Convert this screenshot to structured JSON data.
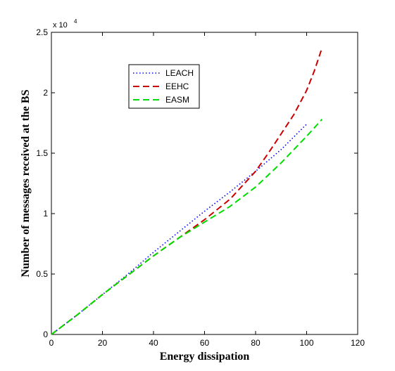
{
  "chart_data": {
    "type": "line",
    "title": "",
    "xlabel": "Energy dissipation",
    "ylabel": "Number of messages received at the BS",
    "xlim": [
      0,
      120
    ],
    "ylim": [
      0,
      25000
    ],
    "x_ticks": [
      0,
      20,
      40,
      60,
      80,
      100,
      120
    ],
    "y_ticks": [
      0,
      5000,
      10000,
      15000,
      20000,
      25000
    ],
    "x_tick_labels": [
      "0",
      "20",
      "40",
      "60",
      "80",
      "100",
      "120"
    ],
    "y_tick_labels": [
      "0",
      "0.5",
      "1",
      "1.5",
      "2",
      "2.5"
    ],
    "y_exponent_label": {
      "base": "x 10",
      "power": "4"
    },
    "grid": false,
    "legend_position": "top-center",
    "series": [
      {
        "name": "LEACH",
        "color": "#0000ff",
        "style": "dotted",
        "x": [
          0,
          10,
          20,
          30,
          40,
          50,
          60,
          70,
          80,
          90,
          100
        ],
        "y": [
          0,
          1600,
          3300,
          5000,
          6800,
          8500,
          10200,
          11800,
          13500,
          15300,
          17400
        ]
      },
      {
        "name": "EEHC",
        "color": "#cc0000",
        "style": "dashed",
        "x": [
          0,
          10,
          20,
          30,
          40,
          50,
          60,
          70,
          80,
          85,
          90,
          95,
          100,
          103,
          106
        ],
        "y": [
          0,
          1600,
          3300,
          4900,
          6500,
          8000,
          9500,
          11200,
          13500,
          15000,
          16600,
          18200,
          20200,
          21800,
          23700
        ]
      },
      {
        "name": "EASM",
        "color": "#00dd00",
        "style": "dashed",
        "x": [
          0,
          10,
          20,
          30,
          40,
          50,
          60,
          70,
          80,
          90,
          100,
          106
        ],
        "y": [
          0,
          1600,
          3300,
          4900,
          6500,
          8000,
          9300,
          10600,
          12200,
          14200,
          16400,
          17800
        ]
      }
    ]
  }
}
